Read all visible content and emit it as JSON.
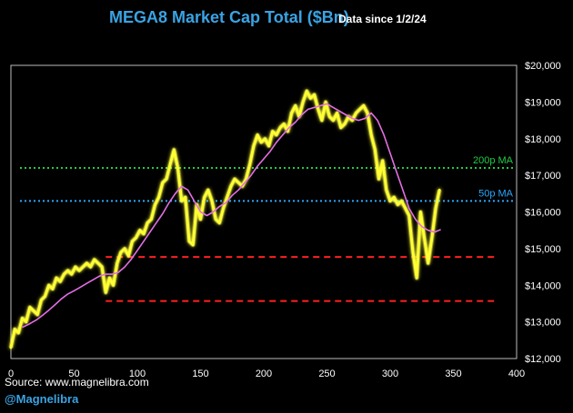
{
  "header": {
    "title": "MEGA8 Market Cap Total ($Bn)",
    "subtitle": "Data since 1/2/24"
  },
  "footer": {
    "source": "Source: www.magnelibra.com",
    "handle": "@Magnelibra"
  },
  "colors": {
    "price": "#ffff33",
    "glow": "#ffff99",
    "ma50": "#e46ee4",
    "line200": "#22cc44",
    "line50": "#2aa8ff",
    "support": "#ff2020",
    "frame": "#bdbdbd",
    "title": "#3aa3e3"
  },
  "chart_data": {
    "type": "line",
    "title": "MEGA8 Market Cap Total ($Bn)",
    "xlim": [
      0,
      400
    ],
    "ylim": [
      12000,
      20000
    ],
    "x_ticks": [
      0,
      50,
      100,
      150,
      200,
      250,
      300,
      350,
      400
    ],
    "y_ticks": [
      12000,
      13000,
      14000,
      15000,
      16000,
      17000,
      18000,
      19000,
      20000
    ],
    "y_tick_labels": [
      "$12,000",
      "$13,000",
      "$14,000",
      "$15,000",
      "$16,000",
      "$17,000",
      "$18,000",
      "$19,000",
      "$20,000"
    ],
    "grid": false,
    "series": [
      {
        "x": [
          0,
          3,
          6,
          9,
          12,
          15,
          18,
          21,
          24,
          27,
          30,
          33,
          36,
          39,
          42,
          45,
          48,
          51,
          54,
          57,
          60,
          63,
          66,
          69,
          72,
          75,
          78,
          81,
          84,
          87,
          90,
          93,
          96,
          99,
          102,
          105,
          108,
          111,
          114,
          117,
          120,
          123,
          126,
          129,
          132,
          135,
          138,
          141,
          144,
          147,
          150,
          153,
          156,
          159,
          162,
          165,
          168,
          171,
          174,
          177,
          180,
          183,
          186,
          189,
          192,
          195,
          198,
          201,
          204,
          207,
          210,
          213,
          216,
          219,
          222,
          225,
          228,
          231,
          234,
          237,
          240,
          243,
          246,
          249,
          252,
          255,
          258,
          261,
          264,
          267,
          270,
          273,
          276,
          279,
          282,
          285,
          288,
          291,
          294,
          297,
          300,
          303,
          306,
          309,
          312,
          315,
          318,
          321,
          324,
          327,
          330,
          333,
          336,
          339
        ],
        "values": [
          12300,
          12800,
          12700,
          13100,
          13000,
          13400,
          13300,
          13200,
          13600,
          13700,
          14000,
          13900,
          14200,
          14100,
          14300,
          14400,
          14300,
          14500,
          14400,
          14500,
          14600,
          14500,
          14700,
          14600,
          14500,
          13800,
          14200,
          14000,
          14600,
          14900,
          15000,
          14800,
          15200,
          15300,
          15500,
          15400,
          15700,
          15800,
          16200,
          16400,
          16800,
          16900,
          17300,
          17700,
          17200,
          16300,
          16400,
          15200,
          15100,
          16200,
          15800,
          16400,
          16600,
          16300,
          15800,
          15700,
          16100,
          16400,
          16700,
          16900,
          16800,
          16700,
          16900,
          17300,
          17800,
          18100,
          17900,
          18000,
          17800,
          18200,
          18100,
          18300,
          18400,
          18200,
          18700,
          18900,
          18600,
          19000,
          19300,
          19100,
          19200,
          18800,
          18500,
          19000,
          18600,
          18500,
          18700,
          18300,
          18400,
          18600,
          18500,
          18700,
          18800,
          18900,
          18700,
          18100,
          17700,
          16900,
          17400,
          16600,
          16300,
          16400,
          16200,
          16300,
          16100,
          15900,
          14900,
          14200,
          16000,
          15300,
          14600,
          15300,
          16100,
          16600
        ]
      },
      {
        "x": [
          9,
          15,
          20,
          25,
          30,
          35,
          40,
          45,
          50,
          55,
          60,
          65,
          70,
          75,
          80,
          85,
          90,
          95,
          100,
          105,
          110,
          115,
          120,
          125,
          130,
          135,
          140,
          145,
          150,
          155,
          160,
          165,
          170,
          175,
          180,
          185,
          190,
          195,
          200,
          205,
          210,
          215,
          220,
          225,
          230,
          235,
          240,
          245,
          250,
          255,
          260,
          265,
          270,
          275,
          280,
          285,
          290,
          295,
          300,
          305,
          310,
          315,
          320,
          325,
          330,
          335,
          340
        ],
        "values": [
          12850,
          12950,
          13050,
          13180,
          13320,
          13470,
          13630,
          13760,
          13850,
          13950,
          14050,
          14150,
          14250,
          14300,
          14300,
          14350,
          14500,
          14700,
          14950,
          15200,
          15450,
          15700,
          15950,
          16250,
          16500,
          16700,
          16600,
          16300,
          16000,
          15900,
          16000,
          16150,
          16250,
          16450,
          16600,
          16800,
          17000,
          17250,
          17450,
          17650,
          17900,
          18100,
          18300,
          18450,
          18650,
          18800,
          18850,
          18900,
          18950,
          18850,
          18750,
          18650,
          18550,
          18500,
          18550,
          18700,
          18500,
          18100,
          17600,
          17100,
          16600,
          16100,
          15800,
          15600,
          15500,
          15450,
          15520
        ]
      }
    ],
    "reference_lines": [
      {
        "y": 17200,
        "label": "200p MA",
        "style": "dotted"
      },
      {
        "y": 16300,
        "label": "50p MA",
        "style": "dotted"
      },
      {
        "y": 14770,
        "label": "",
        "style": "dashed",
        "x_from": 75,
        "x_to": 385
      },
      {
        "y": 13570,
        "label": "",
        "style": "dashed",
        "x_from": 75,
        "x_to": 385
      }
    ]
  }
}
